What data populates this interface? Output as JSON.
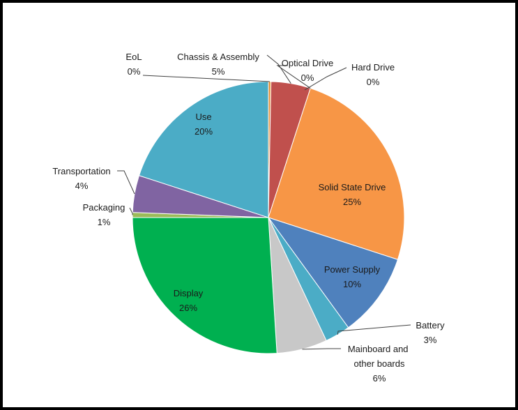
{
  "chart_data": {
    "type": "pie",
    "title": "",
    "slices": [
      {
        "name": "EoL",
        "value": 0.3,
        "label": "0%",
        "color": "#E69138"
      },
      {
        "name": "Chassis & Assembly",
        "value": 4.7,
        "label": "5%",
        "color": "#C0504D"
      },
      {
        "name": "Optical Drive",
        "value": 0.0,
        "label": "0%",
        "color": "#B7A6D5"
      },
      {
        "name": "Hard Drive",
        "value": 0.0,
        "label": "0%",
        "color": "#4BACC6"
      },
      {
        "name": "Solid State Drive",
        "value": 25.0,
        "label": "25%",
        "color": "#F79646"
      },
      {
        "name": "Power Supply",
        "value": 10.0,
        "label": "10%",
        "color": "#4F81BD"
      },
      {
        "name": "Battery",
        "value": 3.0,
        "label": "3%",
        "color": "#4BACC6"
      },
      {
        "name": "Mainboard and other boards",
        "value": 6.0,
        "label": "6%",
        "color": "#C8C8C8"
      },
      {
        "name": "Display",
        "value": 26.0,
        "label": "26%",
        "color": "#00B050"
      },
      {
        "name": "Packaging",
        "value": 0.6,
        "label": "1%",
        "color": "#9BBB59"
      },
      {
        "name": "Transportation",
        "value": 4.4,
        "label": "4%",
        "color": "#8064A2"
      },
      {
        "name": "Use",
        "value": 20.0,
        "label": "20%",
        "color": "#4BACC6"
      }
    ],
    "start_angle_deg": 0,
    "direction": "clockwise",
    "legend": "none",
    "data_labels": "category and percentage"
  }
}
